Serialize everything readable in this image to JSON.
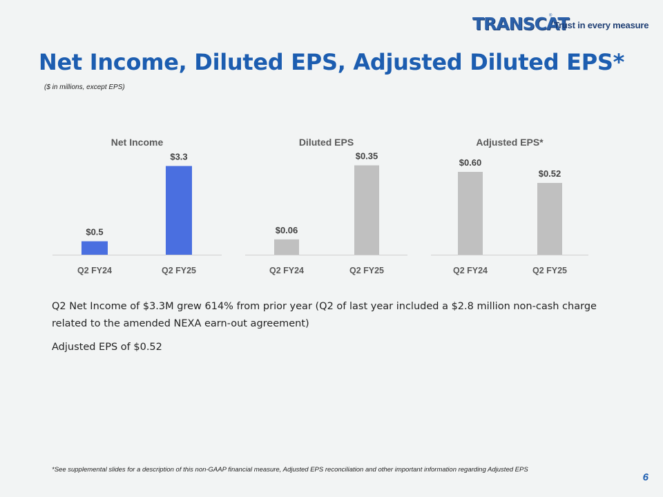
{
  "logo": {
    "brand": "TRANSCAT",
    "trademark": "®",
    "tagline": "Trust in every measure"
  },
  "title": "Net Income, Diluted EPS, Adjusted Diluted EPS*",
  "subtitle": "($ in millions, except EPS)",
  "colors": {
    "title": "#1c5db0",
    "net_income_bar": "#4a6fe0",
    "eps_bar": "#c0c0c0",
    "background": "#f2f4f4"
  },
  "chart_data": [
    {
      "type": "bar",
      "title": "Net Income",
      "categories": [
        "Q2 FY24",
        "Q2 FY25"
      ],
      "values": [
        0.5,
        3.3
      ],
      "labels": [
        "$0.5",
        "$3.3"
      ],
      "color": "#4a6fe0",
      "ylim": [
        0,
        3.8
      ]
    },
    {
      "type": "bar",
      "title": "Diluted EPS",
      "categories": [
        "Q2 FY24",
        "Q2 FY25"
      ],
      "values": [
        0.06,
        0.35
      ],
      "labels": [
        "$0.06",
        "$0.35"
      ],
      "color": "#c0c0c0",
      "ylim": [
        0,
        0.4
      ]
    },
    {
      "type": "bar",
      "title": "Adjusted EPS*",
      "categories": [
        "Q2 FY24",
        "Q2 FY25"
      ],
      "values": [
        0.6,
        0.52
      ],
      "labels": [
        "$0.60",
        "$0.52"
      ],
      "color": "#c0c0c0",
      "ylim": [
        0,
        0.74
      ]
    }
  ],
  "bullets": [
    "Q2 Net Income of $3.3M grew 614% from prior year (Q2 of last year included a $2.8 million non-cash charge related to the amended NEXA earn-out agreement)",
    "Adjusted EPS of $0.52"
  ],
  "footnote": "*See supplemental slides for a description of this non-GAAP financial measure, Adjusted EPS reconciliation and other important information regarding Adjusted EPS",
  "page_number": "6"
}
